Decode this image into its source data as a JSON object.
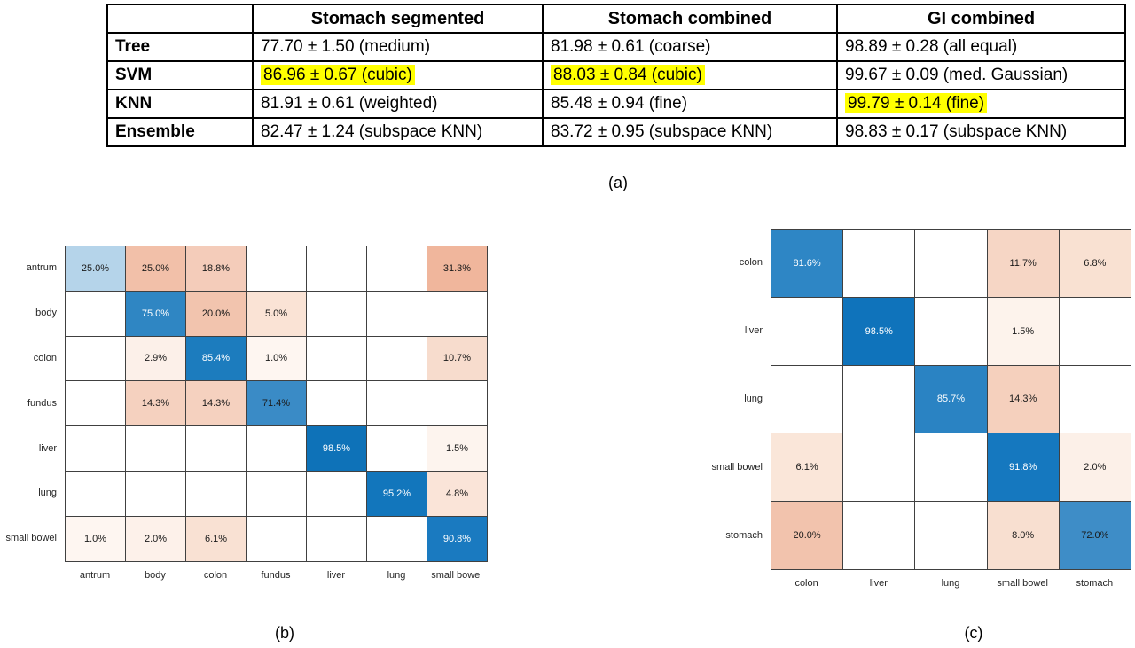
{
  "figure": {
    "captions": {
      "a": "(a)",
      "b": "(b)",
      "c": "(c)"
    }
  },
  "table": {
    "columns": [
      "",
      "Stomach segmented",
      "Stomach combined",
      "GI combined"
    ],
    "highlight_color": "#ffff00",
    "rows": [
      {
        "label": "Tree",
        "cells": [
          {
            "text": "77.70 ± 1.50 (medium)",
            "highlight": false
          },
          {
            "text": "81.98 ± 0.61 (coarse)",
            "highlight": false
          },
          {
            "text": "98.89 ± 0.28 (all equal)",
            "highlight": false
          }
        ]
      },
      {
        "label": "SVM",
        "cells": [
          {
            "text": "86.96 ± 0.67 (cubic)",
            "highlight": true
          },
          {
            "text": "88.03 ± 0.84 (cubic)",
            "highlight": true
          },
          {
            "text": "99.67 ± 0.09 (med. Gaussian)",
            "highlight": false
          }
        ]
      },
      {
        "label": "KNN",
        "cells": [
          {
            "text": "81.91 ± 0.61 (weighted)",
            "highlight": false
          },
          {
            "text": "85.48 ± 0.94 (fine)",
            "highlight": false
          },
          {
            "text": "99.79 ± 0.14 (fine)",
            "highlight": true
          }
        ]
      },
      {
        "label": "Ensemble",
        "cells": [
          {
            "text": "82.47 ± 1.24 (subspace KNN)",
            "highlight": false
          },
          {
            "text": "83.72 ± 0.95 (subspace KNN)",
            "highlight": false
          },
          {
            "text": "98.83 ± 0.17 (subspace KNN)",
            "highlight": false
          }
        ]
      }
    ]
  },
  "matrix_b": {
    "row_labels": [
      "antrum",
      "body",
      "colon",
      "fundus",
      "liver",
      "lung",
      "small bowel"
    ],
    "col_labels": [
      "antrum",
      "body",
      "colon",
      "fundus",
      "liver",
      "lung",
      "small bowel"
    ],
    "cells": [
      [
        {
          "v": "25.0%",
          "bg": "#b5d4ea",
          "fg": "#1a1a1a"
        },
        {
          "v": "25.0%",
          "bg": "#f2c0a9",
          "fg": "#1a1a1a"
        },
        {
          "v": "18.8%",
          "bg": "#f4ccba",
          "fg": "#1a1a1a"
        },
        null,
        null,
        null,
        {
          "v": "31.3%",
          "bg": "#f0b69c",
          "fg": "#1a1a1a"
        }
      ],
      [
        null,
        {
          "v": "75.0%",
          "bg": "#2f86c3",
          "fg": "#ffffff"
        },
        {
          "v": "20.0%",
          "bg": "#f2c4ae",
          "fg": "#1a1a1a"
        },
        {
          "v": "5.0%",
          "bg": "#fae3d5",
          "fg": "#1a1a1a"
        },
        null,
        null,
        null
      ],
      [
        null,
        {
          "v": "2.9%",
          "bg": "#fcf0e9",
          "fg": "#1a1a1a"
        },
        {
          "v": "85.4%",
          "bg": "#1c7cbe",
          "fg": "#ffffff"
        },
        {
          "v": "1.0%",
          "bg": "#fef6f1",
          "fg": "#1a1a1a"
        },
        null,
        null,
        {
          "v": "10.7%",
          "bg": "#f7dccd",
          "fg": "#1a1a1a"
        }
      ],
      [
        null,
        {
          "v": "14.3%",
          "bg": "#f5d1bf",
          "fg": "#1a1a1a"
        },
        {
          "v": "14.3%",
          "bg": "#f5d1bf",
          "fg": "#1a1a1a"
        },
        {
          "v": "71.4%",
          "bg": "#3a8bc6",
          "fg": "#1a1a1a"
        },
        null,
        null,
        null
      ],
      [
        null,
        null,
        null,
        null,
        {
          "v": "98.5%",
          "bg": "#0e72b8",
          "fg": "#ffffff"
        },
        null,
        {
          "v": "1.5%",
          "bg": "#fdf4ee",
          "fg": "#1a1a1a"
        }
      ],
      [
        null,
        null,
        null,
        null,
        null,
        {
          "v": "95.2%",
          "bg": "#1276bc",
          "fg": "#ffffff"
        },
        {
          "v": "4.8%",
          "bg": "#fae4d8",
          "fg": "#1a1a1a"
        }
      ],
      [
        {
          "v": "1.0%",
          "bg": "#fef6f1",
          "fg": "#1a1a1a"
        },
        {
          "v": "2.0%",
          "bg": "#fdf1ea",
          "fg": "#1a1a1a"
        },
        {
          "v": "6.1%",
          "bg": "#f9e1d3",
          "fg": "#1a1a1a"
        },
        null,
        null,
        null,
        {
          "v": "90.8%",
          "bg": "#1a7ac0",
          "fg": "#ffffff"
        }
      ]
    ]
  },
  "matrix_c": {
    "row_labels": [
      "colon",
      "liver",
      "lung",
      "small bowel",
      "stomach"
    ],
    "col_labels": [
      "colon",
      "liver",
      "lung",
      "small bowel",
      "stomach"
    ],
    "cells": [
      [
        {
          "v": "81.6%",
          "bg": "#2e86c5",
          "fg": "#ffffff"
        },
        null,
        null,
        {
          "v": "11.7%",
          "bg": "#f6d6c5",
          "fg": "#1a1a1a"
        },
        {
          "v": "6.8%",
          "bg": "#f9e1d2",
          "fg": "#1a1a1a"
        }
      ],
      [
        null,
        {
          "v": "98.5%",
          "bg": "#0f73bb",
          "fg": "#ffffff"
        },
        null,
        {
          "v": "1.5%",
          "bg": "#fdf3ec",
          "fg": "#1a1a1a"
        },
        null
      ],
      [
        null,
        null,
        {
          "v": "85.7%",
          "bg": "#2a83c3",
          "fg": "#ffffff"
        },
        {
          "v": "14.3%",
          "bg": "#f5d0bd",
          "fg": "#1a1a1a"
        },
        null
      ],
      [
        {
          "v": "6.1%",
          "bg": "#fae6d9",
          "fg": "#1a1a1a"
        },
        null,
        null,
        {
          "v": "91.8%",
          "bg": "#1578bf",
          "fg": "#ffffff"
        },
        {
          "v": "2.0%",
          "bg": "#fcf0e8",
          "fg": "#1a1a1a"
        }
      ],
      [
        {
          "v": "20.0%",
          "bg": "#f2c3ad",
          "fg": "#1a1a1a"
        },
        null,
        null,
        {
          "v": "8.0%",
          "bg": "#f8dfd0",
          "fg": "#1a1a1a"
        },
        {
          "v": "72.0%",
          "bg": "#3e8dc7",
          "fg": "#1a1a1a"
        }
      ]
    ]
  },
  "chart_data": [
    {
      "type": "heatmap",
      "name": "confusion-matrix-b",
      "x_categories": [
        "antrum",
        "body",
        "colon",
        "fundus",
        "liver",
        "lung",
        "small bowel"
      ],
      "y_categories": [
        "antrum",
        "body",
        "colon",
        "fundus",
        "liver",
        "lung",
        "small bowel"
      ],
      "values_percent": [
        [
          25.0,
          25.0,
          18.8,
          null,
          null,
          null,
          31.3
        ],
        [
          null,
          75.0,
          20.0,
          5.0,
          null,
          null,
          null
        ],
        [
          null,
          2.9,
          85.4,
          1.0,
          null,
          null,
          10.7
        ],
        [
          null,
          14.3,
          14.3,
          71.4,
          null,
          null,
          null
        ],
        [
          null,
          null,
          null,
          null,
          98.5,
          null,
          1.5
        ],
        [
          null,
          null,
          null,
          null,
          null,
          95.2,
          4.8
        ],
        [
          1.0,
          2.0,
          6.1,
          null,
          null,
          null,
          90.8
        ]
      ],
      "legend": "none",
      "grid": true,
      "diagonal_color": "#0e72b8",
      "offdiagonal_color": "#ee9d7d"
    },
    {
      "type": "heatmap",
      "name": "confusion-matrix-c",
      "x_categories": [
        "colon",
        "liver",
        "lung",
        "small bowel",
        "stomach"
      ],
      "y_categories": [
        "colon",
        "liver",
        "lung",
        "small bowel",
        "stomach"
      ],
      "values_percent": [
        [
          81.6,
          null,
          null,
          11.7,
          6.8
        ],
        [
          null,
          98.5,
          null,
          1.5,
          null
        ],
        [
          null,
          null,
          85.7,
          14.3,
          null
        ],
        [
          6.1,
          null,
          null,
          91.8,
          2.0
        ],
        [
          20.0,
          null,
          null,
          8.0,
          72.0
        ]
      ],
      "legend": "none",
      "grid": true,
      "diagonal_color": "#0e72b8",
      "offdiagonal_color": "#ee9d7d"
    }
  ]
}
